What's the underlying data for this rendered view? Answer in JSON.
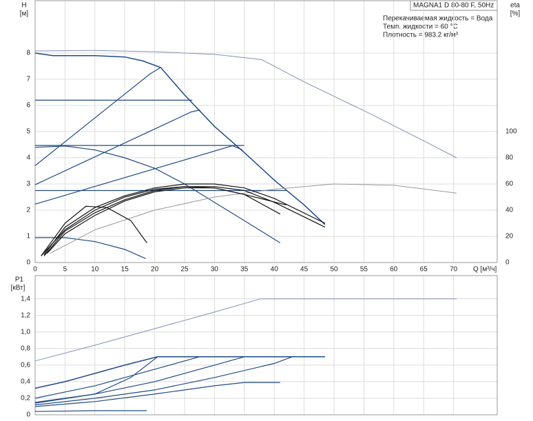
{
  "chart_data": [
    {
      "type": "line",
      "y_label": "H",
      "y_unit": "[м]",
      "y2_label": "eta",
      "y2_unit": "[%]",
      "x_label": "Q [м³/ч]",
      "model": "MAGNA1 D 80-80 F, 50Hz",
      "info": [
        "Перекачиваемая жидкость = Вода",
        "Темп. жидкости = 60 °C",
        "Плотность = 983.2 кг/м³"
      ],
      "xlim": [
        0,
        77.3
      ],
      "xticks": [
        0,
        5,
        10,
        15,
        20,
        25,
        30,
        35,
        40,
        45,
        50,
        55,
        60,
        65,
        70
      ],
      "ylim": [
        0,
        10
      ],
      "yticks": [
        0,
        1,
        2,
        3,
        4,
        5,
        6,
        7,
        8
      ],
      "y2lim": [
        0,
        200
      ],
      "y2ticks": [
        0,
        20,
        40,
        60,
        80,
        100
      ],
      "grid": true,
      "series": [
        {
          "color": "#8190b5",
          "width": 1,
          "x": [
            0,
            10,
            20,
            30,
            37.9,
            45,
            55,
            65,
            70.5
          ],
          "values": [
            8.08,
            8.1,
            8.05,
            7.95,
            7.75,
            6.9,
            5.8,
            4.65,
            4.0
          ]
        },
        {
          "color": "#1f4a86",
          "width": 1.5,
          "x": [
            0,
            3,
            10,
            15,
            18,
            21,
            25,
            30,
            35,
            40,
            45,
            48.5
          ],
          "values": [
            8.0,
            7.9,
            7.9,
            7.85,
            7.7,
            7.45,
            6.4,
            5.2,
            4.2,
            3.15,
            2.2,
            1.45
          ]
        },
        {
          "color": "#1f4a86",
          "width": 1.2,
          "x": [
            0,
            19.2,
            21
          ],
          "values": [
            3.7,
            7.2,
            7.45
          ]
        },
        {
          "color": "#1f4a86",
          "width": 1.2,
          "x": [
            0,
            26.1,
            27.6
          ],
          "values": [
            2.97,
            5.75,
            5.83
          ]
        },
        {
          "color": "#1f4a86",
          "width": 1.2,
          "x": [
            0,
            33,
            34.7
          ],
          "values": [
            2.23,
            4.46,
            4.3
          ]
        },
        {
          "color": "#1f4a86",
          "width": 1.2,
          "x": [
            0,
            26.3
          ],
          "values": [
            6.2,
            6.2
          ]
        },
        {
          "color": "#1f4a86",
          "width": 1.2,
          "x": [
            0,
            35
          ],
          "values": [
            4.47,
            4.47
          ]
        },
        {
          "color": "#1f4a86",
          "width": 1.2,
          "x": [
            0,
            42
          ],
          "values": [
            2.75,
            2.75
          ]
        },
        {
          "color": "#1f4a86",
          "width": 1.2,
          "x": [
            0,
            5,
            10,
            15,
            20,
            25,
            30,
            35,
            41
          ],
          "values": [
            4.4,
            4.45,
            4.3,
            4.0,
            3.6,
            3.0,
            2.3,
            1.6,
            0.75
          ]
        },
        {
          "color": "#1f4a86",
          "width": 1.2,
          "x": [
            0,
            5,
            10,
            15,
            18.5
          ],
          "values": [
            0.95,
            0.95,
            0.8,
            0.5,
            0.15
          ]
        },
        {
          "color": "#999999",
          "width": 1,
          "axis": "y2",
          "x": [
            2.5,
            10,
            20,
            30,
            40,
            50,
            60,
            70.5
          ],
          "values": [
            7,
            25,
            40,
            50,
            56,
            60,
            59,
            53
          ]
        },
        {
          "color": "#111111",
          "width": 1.2,
          "axis": "y2",
          "x": [
            1,
            5,
            10,
            15,
            20,
            25,
            30,
            35,
            40,
            48.5
          ],
          "values": [
            5,
            25,
            40,
            50,
            56,
            58,
            58,
            55,
            46,
            27
          ]
        },
        {
          "color": "#111111",
          "width": 1.2,
          "axis": "y2",
          "x": [
            1.5,
            5,
            10,
            15,
            20,
            25,
            30,
            35,
            41
          ],
          "values": [
            5,
            24,
            38,
            48,
            55,
            58,
            57,
            52,
            37
          ]
        },
        {
          "color": "#111111",
          "width": 1.2,
          "axis": "y2",
          "x": [
            2,
            5,
            10,
            15,
            20,
            25,
            30,
            35,
            42
          ],
          "values": [
            7,
            22,
            36,
            47,
            54,
            57,
            57,
            52,
            44
          ]
        },
        {
          "color": "#111111",
          "width": 1.2,
          "axis": "y2",
          "x": [
            1.5,
            5,
            10,
            15,
            20,
            25,
            30,
            35,
            40,
            48.5
          ],
          "values": [
            6,
            27,
            42,
            51,
            57,
            60,
            60,
            57,
            49,
            30
          ]
        },
        {
          "color": "#111111",
          "width": 1.2,
          "axis": "y2",
          "x": [
            1,
            5,
            8.5,
            12,
            16,
            18.7
          ],
          "values": [
            5,
            30,
            43,
            42,
            32,
            15
          ]
        }
      ]
    },
    {
      "type": "line",
      "y_label": "P1",
      "y_unit": "[кВт]",
      "xlim": [
        0,
        77.3
      ],
      "ylim": [
        0,
        1.68
      ],
      "yticks": [
        0,
        {
          "value": 0.2,
          "label": "0,2"
        },
        {
          "value": 0.4,
          "label": "0,4"
        },
        {
          "value": 0.6,
          "label": "0,6"
        },
        {
          "value": 0.8,
          "label": "0,8"
        },
        {
          "value": 1.0,
          "label": "1,0"
        },
        {
          "value": 1.2,
          "label": "1,2"
        },
        {
          "value": 1.4,
          "label": "1,4"
        }
      ],
      "grid": true,
      "series": [
        {
          "color": "#8190b5",
          "width": 1,
          "x": [
            0,
            10,
            20,
            30,
            37.7,
            70.5
          ],
          "values": [
            0.65,
            0.84,
            1.04,
            1.24,
            1.4,
            1.4
          ]
        },
        {
          "color": "#1f4a86",
          "width": 1.5,
          "x": [
            0,
            5,
            10,
            15,
            20.5,
            48.5
          ],
          "values": [
            0.32,
            0.4,
            0.5,
            0.6,
            0.7,
            0.7
          ]
        },
        {
          "color": "#1f4a86",
          "width": 1.2,
          "x": [
            0,
            10,
            20,
            27.5
          ],
          "values": [
            0.2,
            0.35,
            0.55,
            0.7
          ]
        },
        {
          "color": "#1f4a86",
          "width": 1.2,
          "x": [
            0,
            10,
            20,
            30,
            35
          ],
          "values": [
            0.15,
            0.25,
            0.4,
            0.6,
            0.7
          ]
        },
        {
          "color": "#1f4a86",
          "width": 1.2,
          "x": [
            0,
            10,
            20,
            30,
            40,
            43
          ],
          "values": [
            0.12,
            0.2,
            0.3,
            0.45,
            0.62,
            0.7
          ]
        },
        {
          "color": "#1f4a86",
          "width": 1.2,
          "x": [
            0,
            10,
            16,
            20.5
          ],
          "values": [
            0.14,
            0.25,
            0.45,
            0.7
          ]
        },
        {
          "color": "#1f4a86",
          "width": 1.2,
          "x": [
            0,
            10,
            20,
            30,
            35,
            41
          ],
          "values": [
            0.1,
            0.16,
            0.25,
            0.35,
            0.39,
            0.39
          ]
        },
        {
          "color": "#1f4a86",
          "width": 1.2,
          "x": [
            0,
            10,
            18.7
          ],
          "values": [
            0.04,
            0.05,
            0.05
          ]
        }
      ]
    }
  ]
}
